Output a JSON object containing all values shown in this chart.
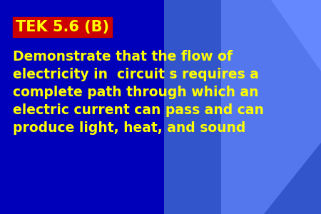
{
  "background_color": "#0000BB",
  "title_text": "TEK 5.6 (B)",
  "title_bg_color": "#CC0000",
  "title_text_color": "#FFFF00",
  "body_text": "Demonstrate that the flow of\nelectricity in  circuit s requires a\ncomplete path through which an\nelectric current can pass and can\nproduce light, heat, and sound",
  "body_text_color": "#FFFF00",
  "title_fontsize": 15,
  "body_fontsize": 13.5,
  "shape1_color": "#3355CC",
  "shape2_color": "#5577EE",
  "shape3_color": "#1133AA"
}
